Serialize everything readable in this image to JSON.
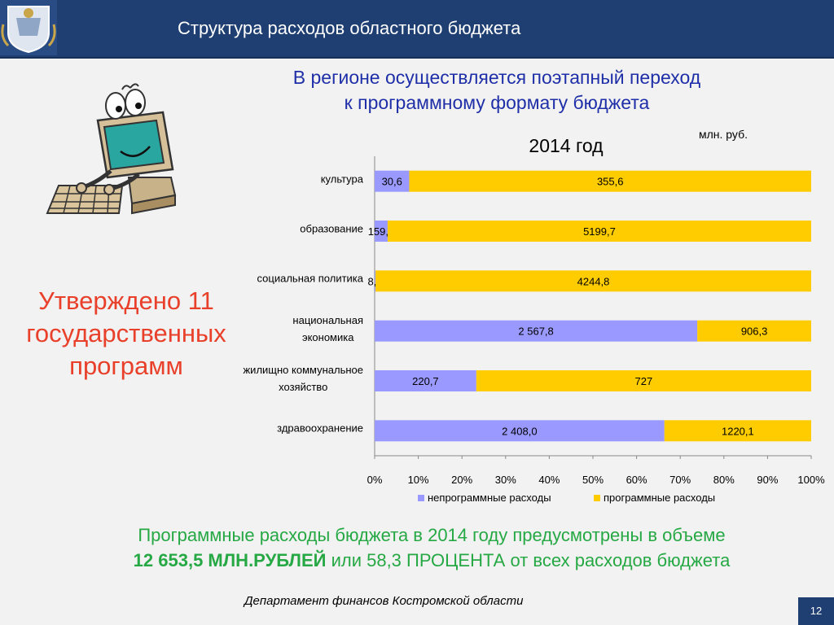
{
  "header": {
    "title": "Структура расходов областного бюджета"
  },
  "subtitle": {
    "line1": "В регионе осуществляется поэтапный переход",
    "line2": "к программному формату бюджета"
  },
  "approved": {
    "line1": "Утверждено 11",
    "line2": "государственных",
    "line3": "программ"
  },
  "colors": {
    "non_program": "#9999ff",
    "program": "#ffcc00",
    "header_bg": "#1f3f73"
  },
  "chart_data": {
    "type": "bar",
    "orientation": "horizontal",
    "stacking": "percent",
    "title": "2014 год",
    "unit": "млн. руб.",
    "categories": [
      "культура",
      "образование",
      "социальная политика",
      "национальная экономика",
      "жилищно коммунальное хозяйство",
      "здравоохранение"
    ],
    "category_lines": [
      [
        "культура"
      ],
      [
        "образование"
      ],
      [
        "социальная политика"
      ],
      [
        "национальная",
        "экономика"
      ],
      [
        "жилищно коммунальное",
        "хозяйство"
      ],
      [
        "здравоохранение"
      ]
    ],
    "series": [
      {
        "name": "непрограммные расходы",
        "values": [
          30.6,
          159.2,
          8.5,
          2567.8,
          220.7,
          2408.0
        ],
        "labels": [
          "30,6",
          "159,2",
          "8,5",
          "2 567,8",
          "220,7",
          "2 408,0"
        ]
      },
      {
        "name": "программные расходы",
        "values": [
          355.6,
          5199.7,
          4244.8,
          906.3,
          727,
          1220.1
        ],
        "labels": [
          "355,6",
          "5199,7",
          "4244,8",
          "906,3",
          "727",
          "1220,1"
        ]
      }
    ],
    "x_ticks": [
      "0%",
      "10%",
      "20%",
      "30%",
      "40%",
      "50%",
      "60%",
      "70%",
      "80%",
      "90%",
      "100%"
    ],
    "xlim": [
      0,
      100
    ],
    "grid": false,
    "legend_position": "bottom"
  },
  "footer": {
    "line1": "Программные расходы бюджета в 2014 году предусмотрены в объеме",
    "amount": "12 653,5 МЛН.РУБЛЕЙ",
    "line2_rest": " или 58,3 ПРОЦЕНТА от всех расходов бюджета"
  },
  "department": "Департамент финансов  Костромской области",
  "page_number": "12"
}
